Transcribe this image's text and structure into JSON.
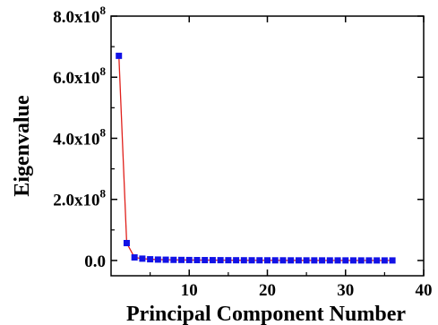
{
  "chart_data": {
    "type": "line",
    "title": "",
    "xlabel": "Principal Component Number",
    "ylabel": "Eigenvalue",
    "xlim": [
      0,
      40
    ],
    "ylim": [
      -50000000.0,
      800000000.0
    ],
    "x_ticks": [
      {
        "value": 10,
        "label": "10"
      },
      {
        "value": 20,
        "label": "20"
      },
      {
        "value": 30,
        "label": "30"
      },
      {
        "value": 40,
        "label": "40"
      }
    ],
    "y_ticks": [
      {
        "value": 0,
        "mantissa": "0.0",
        "exp": ""
      },
      {
        "value": 200000000,
        "mantissa": "2.0x10",
        "exp": "8"
      },
      {
        "value": 400000000,
        "mantissa": "4.0x10",
        "exp": "8"
      },
      {
        "value": 600000000,
        "mantissa": "6.0x10",
        "exp": "8"
      },
      {
        "value": 800000000,
        "mantissa": "8.0x10",
        "exp": "8"
      }
    ],
    "grid": false,
    "legend": "none",
    "colors": {
      "line": "#e0201b",
      "marker": "#1212e6",
      "axis": "#000000"
    },
    "series": [
      {
        "x": [
          1,
          2,
          3,
          4,
          5,
          6,
          7,
          8,
          9,
          10,
          11,
          12,
          13,
          14,
          15,
          16,
          17,
          18,
          19,
          20,
          21,
          22,
          23,
          24,
          25,
          26,
          27,
          28,
          29,
          30,
          31,
          32,
          33,
          34,
          35,
          36
        ],
        "values": [
          670000000,
          57000000,
          10000000,
          6000000,
          4000000,
          3000000,
          2500000,
          2000000,
          1800000,
          1500000,
          1300000,
          1200000,
          1100000,
          1000000,
          900000,
          800000,
          700000,
          650000,
          600000,
          550000,
          500000,
          450000,
          400000,
          380000,
          350000,
          320000,
          300000,
          280000,
          260000,
          240000,
          220000,
          200000,
          180000,
          160000,
          140000,
          120000
        ]
      }
    ]
  }
}
